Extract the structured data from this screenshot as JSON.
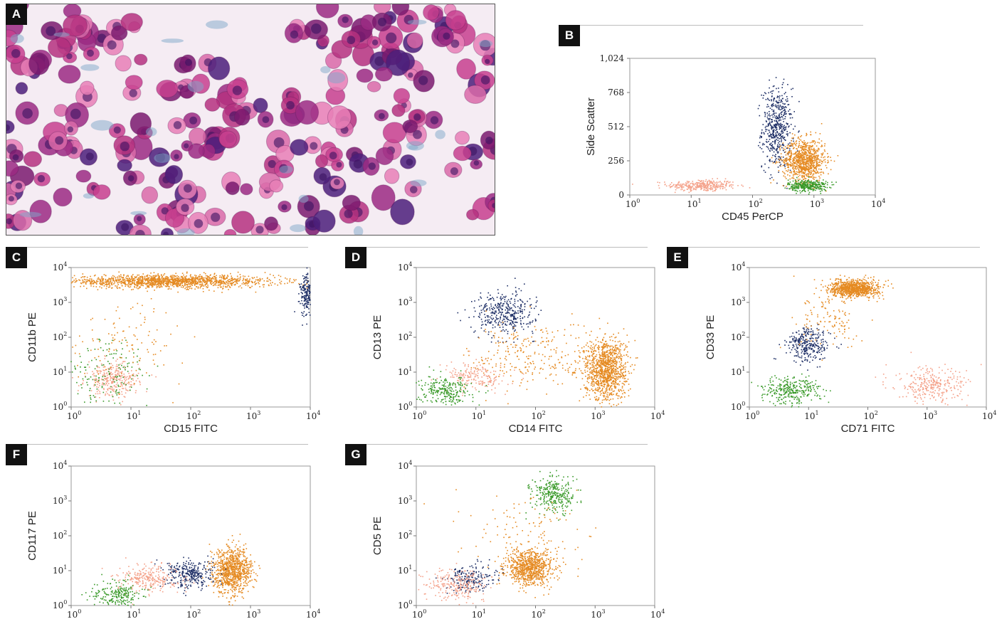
{
  "figure": {
    "panels": [
      {
        "id": "A",
        "label": "A"
      },
      {
        "id": "B",
        "label": "B"
      },
      {
        "id": "C",
        "label": "C"
      },
      {
        "id": "D",
        "label": "D"
      },
      {
        "id": "E",
        "label": "E"
      },
      {
        "id": "F",
        "label": "F"
      },
      {
        "id": "G",
        "label": "G"
      }
    ]
  },
  "colors": {
    "blasts_dark_blue": "#1e2f66",
    "orange": "#e58a22",
    "green": "#3a9a2a",
    "salmon": "#f4a189",
    "axis": "#777777"
  },
  "chart_data": [
    {
      "panel": "B",
      "type": "scatter",
      "xlabel": "CD45 PerCP",
      "ylabel": "Side Scatter",
      "xscale": "log",
      "xlim": [
        1,
        10000
      ],
      "xticks": [
        {
          "b": "10",
          "e": "0"
        },
        {
          "b": "10",
          "e": "1"
        },
        {
          "b": "10",
          "e": "2"
        },
        {
          "b": "10",
          "e": "3"
        },
        {
          "b": "10",
          "e": "4"
        }
      ],
      "yscale": "linear",
      "ylim": [
        0,
        1024
      ],
      "yticks": [
        "0",
        "256",
        "512",
        "768",
        "1,024"
      ],
      "yvals": [
        0,
        256,
        512,
        768,
        1024
      ],
      "clusters": [
        {
          "color": "#f4a189",
          "n": 320,
          "cx": 15,
          "cy": 70,
          "sx": 0.28,
          "sy": 22
        },
        {
          "color": "#1e2f66",
          "n": 520,
          "cx": 250,
          "cy": 500,
          "sx": 0.12,
          "sy": 150
        },
        {
          "color": "#e58a22",
          "n": 900,
          "cx": 700,
          "cy": 260,
          "sx": 0.17,
          "sy": 80
        },
        {
          "color": "#3a9a2a",
          "n": 320,
          "cx": 800,
          "cy": 70,
          "sx": 0.16,
          "sy": 22
        }
      ]
    },
    {
      "panel": "C",
      "type": "scatter",
      "xlabel": "CD15 FITC",
      "ylabel": "CD11b PE",
      "xscale": "log",
      "yscale": "log",
      "xlim": [
        1,
        10000
      ],
      "ylim": [
        1,
        10000
      ],
      "xticks": [
        {
          "b": "10",
          "e": "0"
        },
        {
          "b": "10",
          "e": "1"
        },
        {
          "b": "10",
          "e": "2"
        },
        {
          "b": "10",
          "e": "3"
        },
        {
          "b": "10",
          "e": "4"
        }
      ],
      "yticks": [
        {
          "b": "10",
          "e": "0"
        },
        {
          "b": "10",
          "e": "1"
        },
        {
          "b": "10",
          "e": "2"
        },
        {
          "b": "10",
          "e": "3"
        },
        {
          "b": "10",
          "e": "4"
        }
      ],
      "clusters": [
        {
          "color": "#e58a22",
          "n": 1500,
          "cx": 40,
          "cy": 4000,
          "sx": 0.9,
          "sy": 0.09
        },
        {
          "color": "#1e2f66",
          "n": 220,
          "cx": 9000,
          "cy": 1500,
          "sx": 0.06,
          "sy": 0.3
        },
        {
          "color": "#f4a189",
          "n": 300,
          "cx": 5,
          "cy": 6,
          "sx": 0.22,
          "sy": 0.25
        },
        {
          "color": "#3a9a2a",
          "n": 160,
          "cx": 4,
          "cy": 8,
          "sx": 0.35,
          "sy": 0.55
        },
        {
          "color": "#e58a22",
          "n": 120,
          "cx": 8,
          "cy": 80,
          "sx": 0.5,
          "sy": 0.6
        }
      ]
    },
    {
      "panel": "D",
      "type": "scatter",
      "xlabel": "CD14 FITC",
      "ylabel": "CD13 PE",
      "xscale": "log",
      "yscale": "log",
      "xlim": [
        1,
        10000
      ],
      "ylim": [
        1,
        10000
      ],
      "xticks": [
        {
          "b": "10",
          "e": "0"
        },
        {
          "b": "10",
          "e": "1"
        },
        {
          "b": "10",
          "e": "2"
        },
        {
          "b": "10",
          "e": "3"
        },
        {
          "b": "10",
          "e": "4"
        }
      ],
      "yticks": [
        {
          "b": "10",
          "e": "0"
        },
        {
          "b": "10",
          "e": "1"
        },
        {
          "b": "10",
          "e": "2"
        },
        {
          "b": "10",
          "e": "3"
        },
        {
          "b": "10",
          "e": "4"
        }
      ],
      "clusters": [
        {
          "color": "#1e2f66",
          "n": 380,
          "cx": 30,
          "cy": 500,
          "sx": 0.25,
          "sy": 0.3
        },
        {
          "color": "#e58a22",
          "n": 1100,
          "cx": 1500,
          "cy": 12,
          "sx": 0.18,
          "sy": 0.45
        },
        {
          "color": "#e58a22",
          "n": 250,
          "cx": 80,
          "cy": 30,
          "sx": 0.5,
          "sy": 0.5
        },
        {
          "color": "#f4a189",
          "n": 180,
          "cx": 10,
          "cy": 7,
          "sx": 0.25,
          "sy": 0.2
        },
        {
          "color": "#3a9a2a",
          "n": 260,
          "cx": 3,
          "cy": 3,
          "sx": 0.22,
          "sy": 0.2
        }
      ]
    },
    {
      "panel": "E",
      "type": "scatter",
      "xlabel": "CD71 FITC",
      "ylabel": "CD33 PE",
      "xscale": "log",
      "yscale": "log",
      "xlim": [
        1,
        10000
      ],
      "ylim": [
        1,
        10000
      ],
      "xticks": [
        {
          "b": "10",
          "e": "0"
        },
        {
          "b": "10",
          "e": "1"
        },
        {
          "b": "10",
          "e": "2"
        },
        {
          "b": "10",
          "e": "3"
        },
        {
          "b": "10",
          "e": "4"
        }
      ],
      "yticks": [
        {
          "b": "10",
          "e": "0"
        },
        {
          "b": "10",
          "e": "1"
        },
        {
          "b": "10",
          "e": "2"
        },
        {
          "b": "10",
          "e": "3"
        },
        {
          "b": "10",
          "e": "4"
        }
      ],
      "clusters": [
        {
          "color": "#e58a22",
          "n": 900,
          "cx": 60,
          "cy": 2500,
          "sx": 0.2,
          "sy": 0.12
        },
        {
          "color": "#1e2f66",
          "n": 300,
          "cx": 10,
          "cy": 60,
          "sx": 0.18,
          "sy": 0.25
        },
        {
          "color": "#3a9a2a",
          "n": 300,
          "cx": 5,
          "cy": 3,
          "sx": 0.25,
          "sy": 0.2
        },
        {
          "color": "#f4a189",
          "n": 300,
          "cx": 1200,
          "cy": 4,
          "sx": 0.3,
          "sy": 0.25
        },
        {
          "color": "#e58a22",
          "n": 120,
          "cx": 25,
          "cy": 300,
          "sx": 0.3,
          "sy": 0.4
        }
      ]
    },
    {
      "panel": "F",
      "type": "scatter",
      "xlabel": "",
      "ylabel": "CD117 PE",
      "xscale": "log",
      "yscale": "log",
      "xlim": [
        1,
        10000
      ],
      "ylim": [
        1,
        10000
      ],
      "xticks": [
        {
          "b": "10",
          "e": "0"
        },
        {
          "b": "10",
          "e": "1"
        },
        {
          "b": "10",
          "e": "2"
        },
        {
          "b": "10",
          "e": "3"
        },
        {
          "b": "10",
          "e": "4"
        }
      ],
      "yticks": [
        {
          "b": "10",
          "e": "0"
        },
        {
          "b": "10",
          "e": "1"
        },
        {
          "b": "10",
          "e": "2"
        },
        {
          "b": "10",
          "e": "3"
        },
        {
          "b": "10",
          "e": "4"
        }
      ],
      "clusters": [
        {
          "color": "#e58a22",
          "n": 900,
          "cx": 500,
          "cy": 10,
          "sx": 0.16,
          "sy": 0.32
        },
        {
          "color": "#1e2f66",
          "n": 300,
          "cx": 100,
          "cy": 8,
          "sx": 0.2,
          "sy": 0.2
        },
        {
          "color": "#f4a189",
          "n": 260,
          "cx": 20,
          "cy": 6,
          "sx": 0.25,
          "sy": 0.2
        },
        {
          "color": "#3a9a2a",
          "n": 220,
          "cx": 6,
          "cy": 2,
          "sx": 0.2,
          "sy": 0.2
        }
      ]
    },
    {
      "panel": "G",
      "type": "scatter",
      "xlabel": "",
      "ylabel": "CD5 PE",
      "xscale": "log",
      "yscale": "log",
      "xlim": [
        1,
        10000
      ],
      "ylim": [
        1,
        10000
      ],
      "xticks": [
        {
          "b": "10",
          "e": "0"
        },
        {
          "b": "10",
          "e": "1"
        },
        {
          "b": "10",
          "e": "2"
        },
        {
          "b": "10",
          "e": "3"
        },
        {
          "b": "10",
          "e": "4"
        }
      ],
      "yticks": [
        {
          "b": "10",
          "e": "0"
        },
        {
          "b": "10",
          "e": "1"
        },
        {
          "b": "10",
          "e": "2"
        },
        {
          "b": "10",
          "e": "3"
        },
        {
          "b": "10",
          "e": "4"
        }
      ],
      "clusters": [
        {
          "color": "#e58a22",
          "n": 800,
          "cx": 80,
          "cy": 12,
          "sx": 0.2,
          "sy": 0.25
        },
        {
          "color": "#3a9a2a",
          "n": 300,
          "cx": 200,
          "cy": 1500,
          "sx": 0.18,
          "sy": 0.25
        },
        {
          "color": "#1e2f66",
          "n": 200,
          "cx": 8,
          "cy": 6,
          "sx": 0.2,
          "sy": 0.2
        },
        {
          "color": "#f4a189",
          "n": 240,
          "cx": 5,
          "cy": 4,
          "sx": 0.25,
          "sy": 0.22
        },
        {
          "color": "#e58a22",
          "n": 120,
          "cx": 90,
          "cy": 120,
          "sx": 0.5,
          "sy": 0.6
        }
      ]
    }
  ]
}
